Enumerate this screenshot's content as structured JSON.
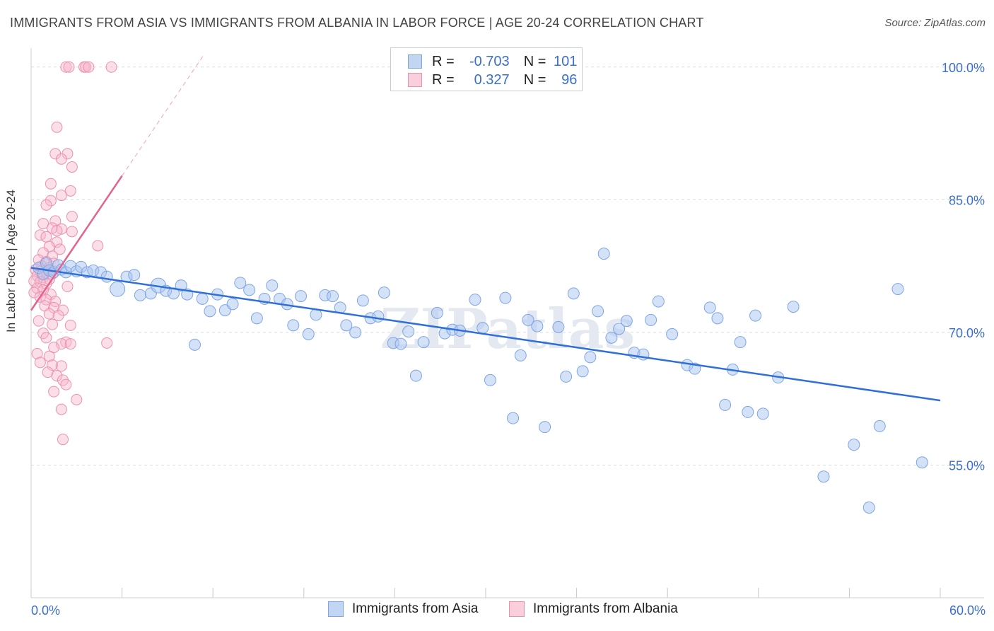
{
  "title": "IMMIGRANTS FROM ASIA VS IMMIGRANTS FROM ALBANIA IN LABOR FORCE | AGE 20-24 CORRELATION CHART",
  "source": "Source: ZipAtlas.com",
  "watermark": "ZIPatlas",
  "colors": {
    "asia_fill": "#a9c6f2",
    "asia_stroke": "#7ea5e4",
    "asia_line": "#2f6fd8",
    "albania_fill": "#f6b7cb",
    "albania_stroke": "#ee8fae",
    "albania_line": "#e2638f",
    "axis_text": "#3a6fd0"
  },
  "legend_top": {
    "asia": {
      "r_label": "R =",
      "r_value": "-0.703",
      "n_label": "N =",
      "n_value": "101"
    },
    "albania": {
      "r_label": "R =",
      "r_value": "0.327",
      "n_label": "N =",
      "n_value": "96"
    }
  },
  "chart_data": {
    "type": "scatter",
    "title": "IMMIGRANTS FROM ASIA VS IMMIGRANTS FROM ALBANIA IN LABOR FORCE | AGE 20-24 CORRELATION CHART",
    "xlabel": "",
    "ylabel": "In Labor Force | Age 20-24",
    "xlim": [
      0,
      60
    ],
    "ylim": [
      40,
      101.5
    ],
    "x_tick_labels": [
      "0.0%",
      "60.0%"
    ],
    "y_ticks": [
      55,
      70,
      85,
      100
    ],
    "y_tick_labels": [
      "55.0%",
      "70.0%",
      "85.0%",
      "100.0%"
    ],
    "grid": true,
    "legend_position": "bottom",
    "series": [
      {
        "name": "Immigrants from Asia",
        "trend": {
          "x": [
            0.0,
            60.0
          ],
          "y": [
            77.3,
            62.3
          ]
        },
        "points": [
          [
            0.5,
            77.3
          ],
          [
            0.8,
            76.6
          ],
          [
            1.0,
            77.8
          ],
          [
            1.2,
            77.0
          ],
          [
            1.5,
            76.8
          ],
          [
            1.8,
            77.6
          ],
          [
            2.0,
            77.1
          ],
          [
            2.3,
            76.8
          ],
          [
            2.6,
            77.5
          ],
          [
            3.0,
            76.9
          ],
          [
            3.3,
            77.4
          ],
          [
            3.7,
            76.8
          ],
          [
            4.1,
            77.0
          ],
          [
            4.6,
            76.8
          ],
          [
            5.0,
            76.3
          ],
          [
            5.7,
            74.9
          ],
          [
            6.3,
            76.3
          ],
          [
            6.8,
            76.5
          ],
          [
            7.2,
            74.2
          ],
          [
            7.9,
            74.4
          ],
          [
            8.4,
            75.3
          ],
          [
            8.9,
            74.7
          ],
          [
            9.4,
            74.4
          ],
          [
            9.9,
            75.3
          ],
          [
            10.3,
            74.3
          ],
          [
            10.8,
            68.6
          ],
          [
            11.3,
            73.8
          ],
          [
            11.8,
            72.4
          ],
          [
            12.3,
            74.3
          ],
          [
            12.8,
            72.5
          ],
          [
            13.3,
            73.2
          ],
          [
            13.8,
            75.6
          ],
          [
            14.4,
            74.8
          ],
          [
            14.9,
            71.6
          ],
          [
            15.4,
            73.8
          ],
          [
            15.9,
            75.3
          ],
          [
            16.4,
            73.8
          ],
          [
            16.9,
            73.2
          ],
          [
            17.3,
            70.8
          ],
          [
            17.8,
            74.1
          ],
          [
            18.3,
            69.8
          ],
          [
            18.8,
            72.0
          ],
          [
            19.4,
            74.2
          ],
          [
            19.9,
            74.1
          ],
          [
            20.4,
            72.8
          ],
          [
            20.8,
            70.8
          ],
          [
            21.4,
            70.0
          ],
          [
            21.9,
            73.6
          ],
          [
            22.4,
            71.6
          ],
          [
            22.9,
            71.8
          ],
          [
            23.3,
            74.5
          ],
          [
            23.9,
            68.8
          ],
          [
            24.4,
            68.7
          ],
          [
            24.9,
            70.1
          ],
          [
            25.4,
            65.1
          ],
          [
            25.9,
            68.9
          ],
          [
            26.8,
            72.2
          ],
          [
            27.3,
            69.9
          ],
          [
            27.8,
            70.3
          ],
          [
            28.3,
            70.2
          ],
          [
            29.3,
            73.7
          ],
          [
            29.8,
            70.5
          ],
          [
            30.3,
            64.6
          ],
          [
            31.3,
            73.9
          ],
          [
            31.8,
            60.3
          ],
          [
            32.3,
            67.4
          ],
          [
            32.8,
            71.4
          ],
          [
            33.4,
            70.7
          ],
          [
            33.9,
            59.3
          ],
          [
            34.8,
            70.6
          ],
          [
            35.3,
            65.0
          ],
          [
            35.8,
            74.4
          ],
          [
            36.4,
            65.6
          ],
          [
            36.9,
            67.2
          ],
          [
            37.4,
            72.4
          ],
          [
            37.8,
            78.9
          ],
          [
            38.3,
            69.4
          ],
          [
            38.8,
            70.4
          ],
          [
            39.3,
            71.3
          ],
          [
            39.8,
            67.7
          ],
          [
            40.4,
            67.5
          ],
          [
            40.9,
            71.4
          ],
          [
            41.4,
            73.5
          ],
          [
            42.3,
            69.8
          ],
          [
            43.3,
            66.3
          ],
          [
            43.8,
            65.9
          ],
          [
            44.8,
            72.8
          ],
          [
            45.3,
            71.6
          ],
          [
            45.8,
            61.8
          ],
          [
            46.3,
            65.8
          ],
          [
            46.8,
            68.9
          ],
          [
            47.3,
            61.0
          ],
          [
            47.8,
            71.9
          ],
          [
            48.3,
            60.8
          ],
          [
            49.3,
            64.9
          ],
          [
            50.3,
            72.9
          ],
          [
            52.3,
            53.7
          ],
          [
            54.3,
            57.3
          ],
          [
            55.3,
            50.2
          ],
          [
            56.0,
            59.4
          ],
          [
            57.2,
            74.9
          ],
          [
            58.8,
            55.3
          ]
        ]
      },
      {
        "name": "Immigrants from Albania",
        "trend": {
          "x": [
            0.0,
            6.0
          ],
          "y": [
            72.5,
            87.7
          ]
        },
        "points": [
          [
            2.3,
            100.0
          ],
          [
            2.5,
            100.0
          ],
          [
            3.5,
            100.0
          ],
          [
            3.6,
            100.0
          ],
          [
            3.8,
            100.0
          ],
          [
            5.3,
            100.0
          ],
          [
            1.7,
            93.2
          ],
          [
            1.6,
            90.2
          ],
          [
            2.4,
            90.2
          ],
          [
            2.0,
            89.6
          ],
          [
            2.7,
            88.7
          ],
          [
            1.3,
            86.8
          ],
          [
            2.6,
            86.0
          ],
          [
            2.0,
            85.5
          ],
          [
            1.3,
            84.9
          ],
          [
            1.0,
            84.4
          ],
          [
            2.7,
            83.1
          ],
          [
            1.6,
            82.6
          ],
          [
            0.8,
            82.3
          ],
          [
            1.4,
            81.8
          ],
          [
            2.0,
            81.7
          ],
          [
            1.7,
            81.5
          ],
          [
            2.7,
            81.4
          ],
          [
            0.6,
            81.0
          ],
          [
            1.0,
            80.8
          ],
          [
            1.7,
            80.2
          ],
          [
            4.4,
            79.8
          ],
          [
            1.2,
            79.7
          ],
          [
            1.9,
            79.4
          ],
          [
            0.8,
            79.0
          ],
          [
            1.4,
            78.6
          ],
          [
            0.5,
            78.2
          ],
          [
            1.0,
            78.0
          ],
          [
            1.5,
            77.8
          ],
          [
            0.7,
            77.5
          ],
          [
            1.2,
            77.3
          ],
          [
            0.3,
            77.1
          ],
          [
            0.6,
            76.9
          ],
          [
            1.0,
            76.8
          ],
          [
            1.4,
            76.6
          ],
          [
            0.4,
            76.4
          ],
          [
            0.8,
            76.2
          ],
          [
            1.2,
            76.0
          ],
          [
            0.2,
            75.8
          ],
          [
            0.6,
            75.7
          ],
          [
            1.0,
            75.5
          ],
          [
            2.4,
            75.2
          ],
          [
            0.4,
            75.0
          ],
          [
            0.8,
            74.8
          ],
          [
            0.2,
            74.5
          ],
          [
            1.3,
            74.3
          ],
          [
            0.6,
            74.0
          ],
          [
            1.0,
            73.7
          ],
          [
            1.6,
            73.5
          ],
          [
            0.9,
            73.0
          ],
          [
            1.5,
            72.8
          ],
          [
            2.1,
            72.5
          ],
          [
            1.2,
            72.1
          ],
          [
            1.8,
            71.9
          ],
          [
            0.5,
            71.3
          ],
          [
            1.4,
            70.9
          ],
          [
            2.6,
            70.8
          ],
          [
            0.8,
            69.9
          ],
          [
            1.0,
            69.4
          ],
          [
            2.3,
            68.9
          ],
          [
            2.0,
            68.7
          ],
          [
            2.6,
            68.7
          ],
          [
            5.0,
            68.8
          ],
          [
            1.5,
            68.3
          ],
          [
            0.4,
            67.6
          ],
          [
            1.2,
            67.3
          ],
          [
            0.6,
            66.6
          ],
          [
            1.4,
            66.3
          ],
          [
            2.0,
            66.2
          ],
          [
            1.1,
            65.5
          ],
          [
            1.7,
            65.1
          ],
          [
            2.1,
            64.6
          ],
          [
            2.3,
            64.1
          ],
          [
            1.5,
            63.3
          ],
          [
            3.0,
            62.4
          ],
          [
            2.0,
            61.3
          ],
          [
            2.1,
            57.9
          ]
        ]
      }
    ]
  },
  "bottom_legend": {
    "asia_label": "Immigrants from Asia",
    "albania_label": "Immigrants from Albania"
  }
}
